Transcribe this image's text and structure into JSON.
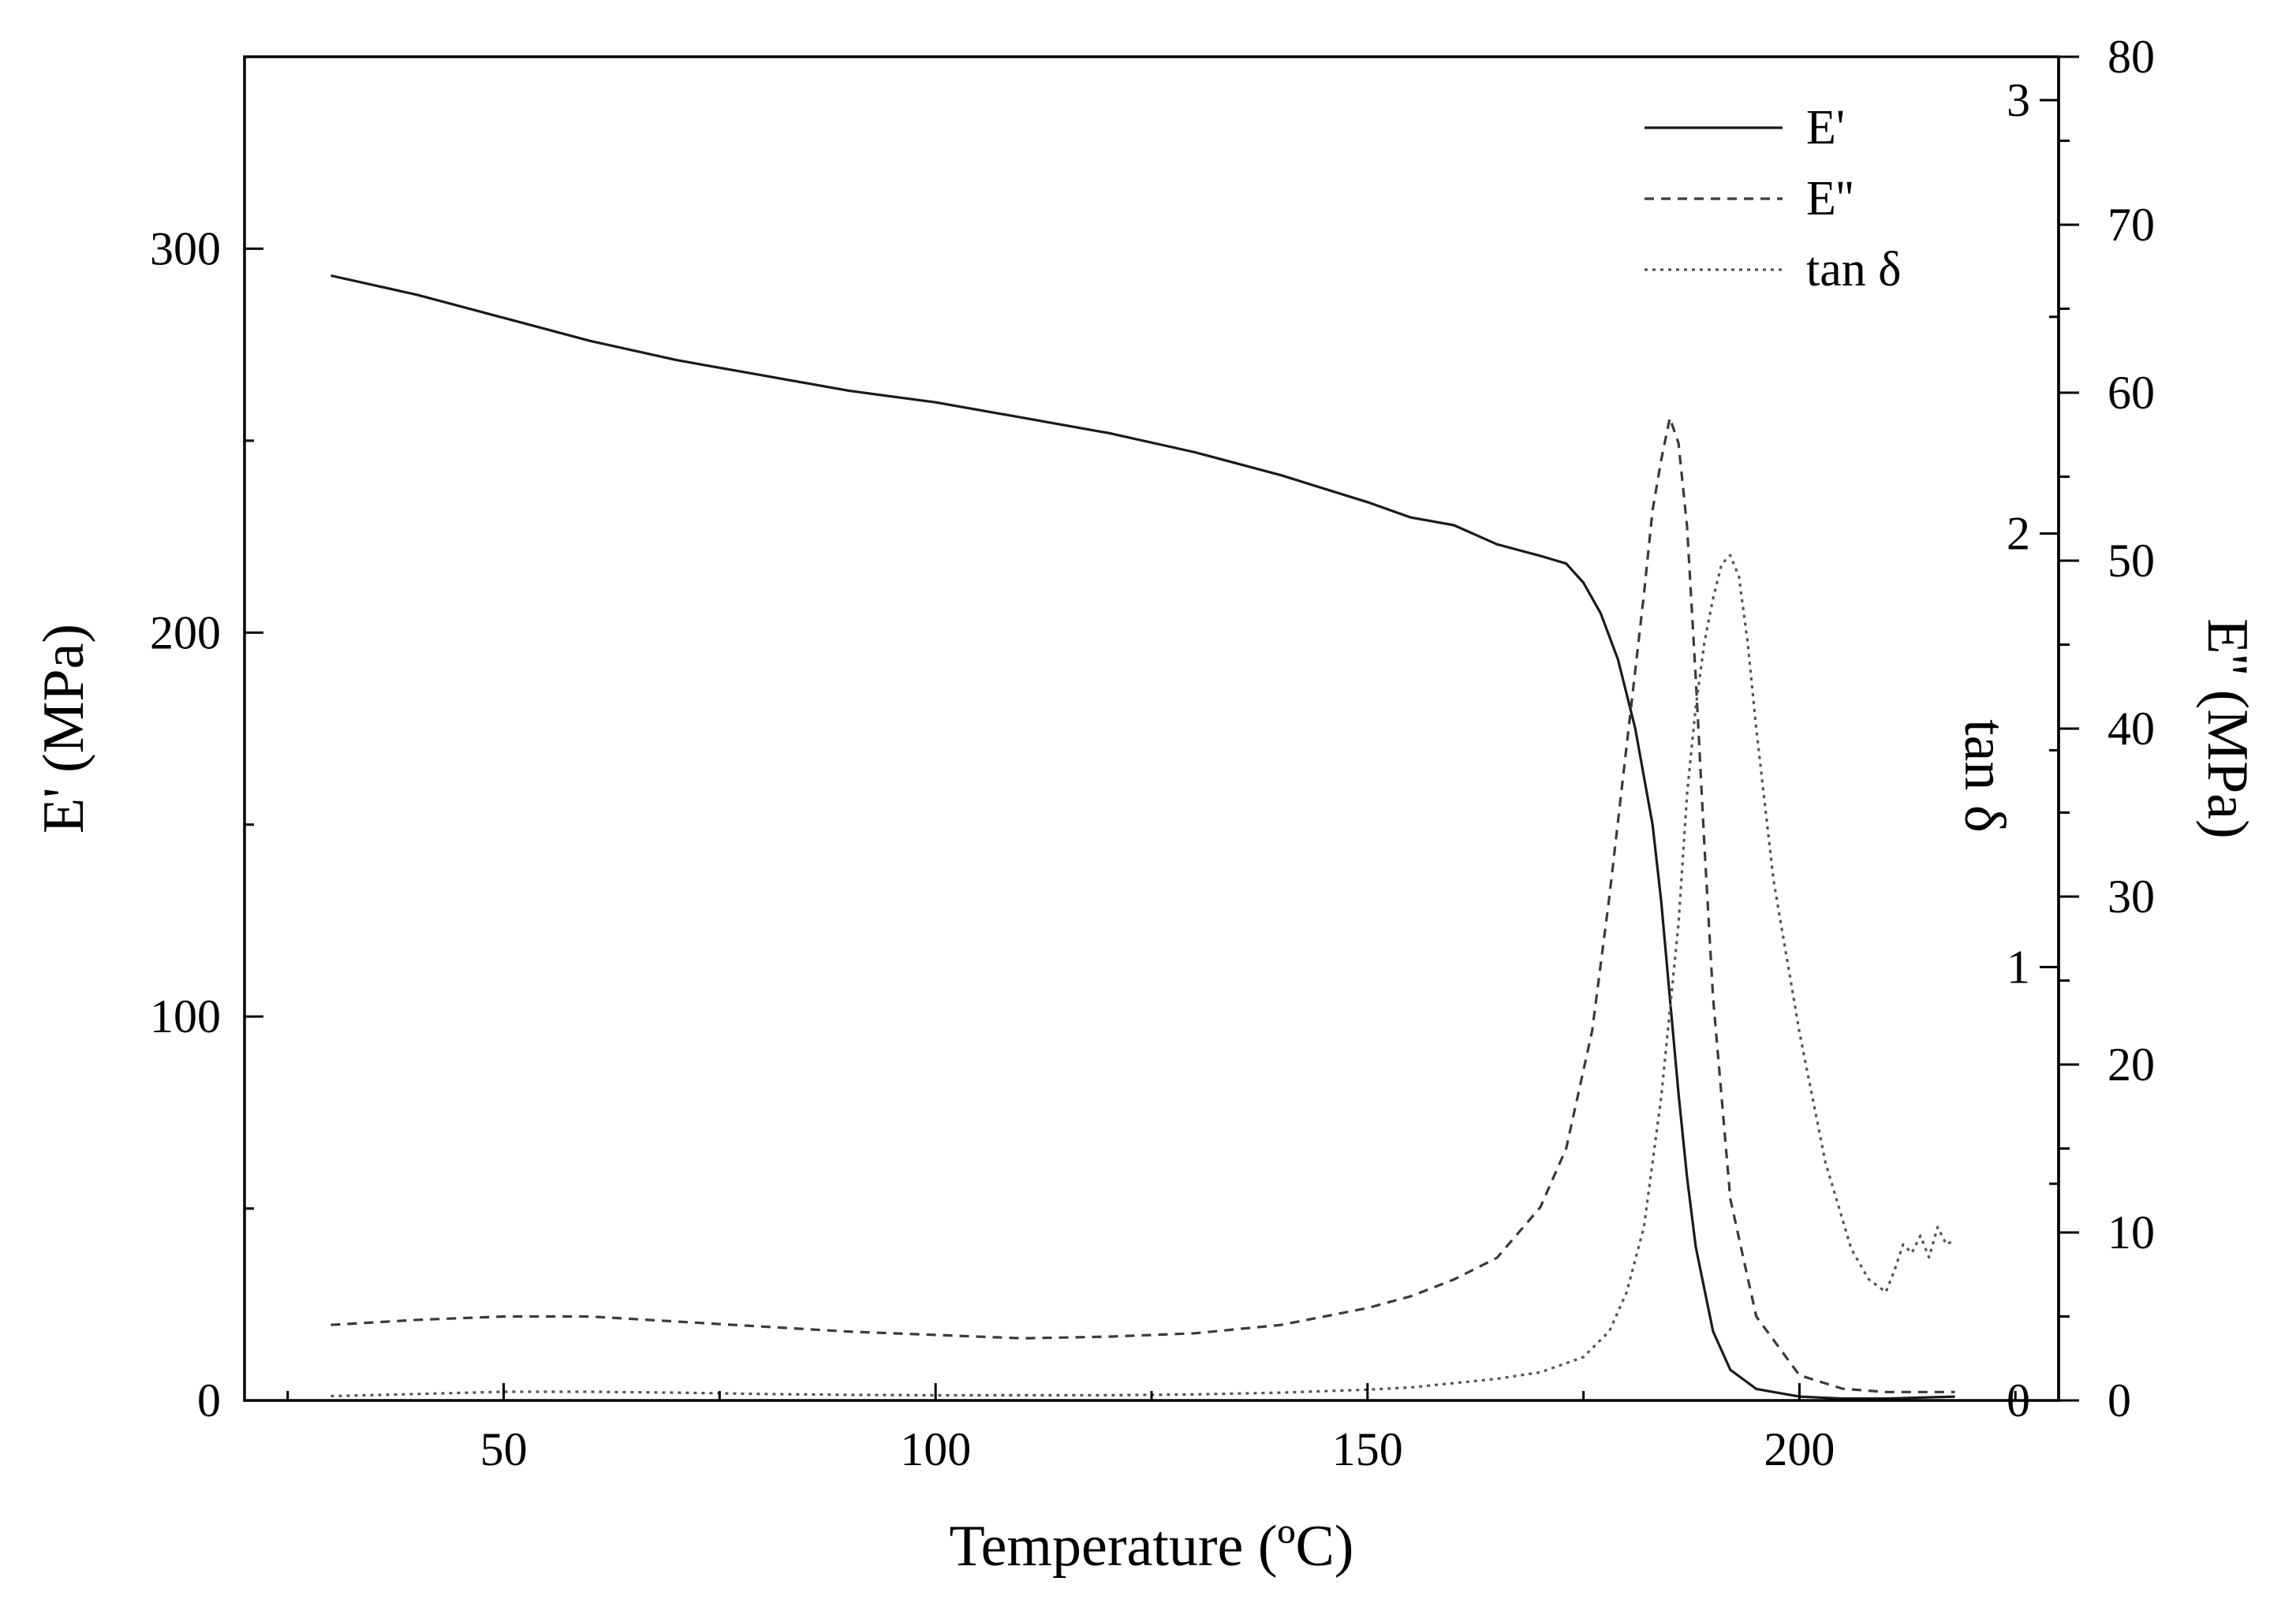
{
  "chart_data": {
    "type": "line",
    "title": "",
    "xlabel": "Temperature (ºC)",
    "ylabel_left": "E' (MPa)",
    "ylabel_tan": "tan δ",
    "ylabel_right": "E'' (MPa)",
    "xlim": [
      20,
      230
    ],
    "ylim_left": [
      0,
      350
    ],
    "ylim_tan": [
      0,
      3.1
    ],
    "ylim_right": [
      0,
      80
    ],
    "xticks": [
      50,
      100,
      150,
      200
    ],
    "xtick_labels": [
      "50",
      "100",
      "150",
      "200"
    ],
    "yticks_left": [
      0,
      100,
      200,
      300
    ],
    "ytick_labels_left": [
      "0",
      "100",
      "200",
      "300"
    ],
    "yticks_tan": [
      0,
      1,
      2,
      3
    ],
    "ytick_labels_tan": [
      "0",
      "1",
      "2",
      "3"
    ],
    "yticks_right": [
      0,
      10,
      20,
      30,
      40,
      50,
      60,
      70,
      80
    ],
    "ytick_labels_right": [
      "0",
      "10",
      "20",
      "30",
      "40",
      "50",
      "60",
      "70",
      "80"
    ],
    "legend_position": "top-right",
    "series": [
      {
        "name": "E'",
        "axis": "left",
        "style": "solid",
        "x": [
          30,
          40,
          50,
          60,
          70,
          80,
          90,
          100,
          110,
          120,
          130,
          140,
          150,
          155,
          160,
          165,
          170,
          173,
          175,
          177,
          179,
          181,
          183,
          184,
          185,
          186,
          187,
          188,
          190,
          192,
          195,
          200,
          205,
          210,
          218
        ],
        "values": [
          293,
          288,
          282,
          276,
          271,
          267,
          263,
          260,
          256,
          252,
          247,
          241,
          234,
          230,
          228,
          223,
          220,
          218,
          213,
          205,
          193,
          175,
          150,
          130,
          105,
          80,
          58,
          40,
          18,
          8,
          3,
          1,
          0.5,
          0.5,
          1
        ]
      },
      {
        "name": "E''",
        "axis": "right",
        "style": "dashed",
        "x": [
          30,
          40,
          50,
          60,
          70,
          80,
          90,
          100,
          110,
          120,
          130,
          140,
          150,
          155,
          160,
          165,
          170,
          173,
          176,
          178,
          180,
          182,
          183,
          184,
          185,
          186,
          187,
          188,
          189,
          190,
          192,
          195,
          200,
          205,
          210,
          218
        ],
        "values": [
          4.5,
          4.8,
          5.0,
          5.0,
          4.7,
          4.4,
          4.1,
          3.9,
          3.7,
          3.8,
          4.0,
          4.5,
          5.5,
          6.2,
          7.2,
          8.5,
          11.5,
          15,
          22,
          30,
          39,
          48,
          53,
          56,
          58.5,
          57,
          52,
          43,
          33,
          24,
          12,
          5,
          1.5,
          0.7,
          0.5,
          0.5
        ]
      },
      {
        "name": "tan δ",
        "axis": "tan",
        "style": "dotted",
        "x": [
          30,
          40,
          50,
          60,
          70,
          80,
          90,
          100,
          110,
          120,
          130,
          140,
          150,
          155,
          160,
          165,
          170,
          175,
          178,
          180,
          182,
          184,
          186,
          187,
          188,
          189,
          190,
          191,
          192,
          193,
          194,
          195,
          197,
          200,
          203,
          206,
          208,
          210,
          211,
          212,
          213,
          214,
          215,
          216,
          217,
          218
        ],
        "values": [
          0.01,
          0.015,
          0.02,
          0.02,
          0.018,
          0.015,
          0.013,
          0.012,
          0.012,
          0.012,
          0.014,
          0.018,
          0.025,
          0.03,
          0.04,
          0.05,
          0.065,
          0.1,
          0.16,
          0.25,
          0.4,
          0.7,
          1.1,
          1.4,
          1.6,
          1.75,
          1.85,
          1.93,
          1.95,
          1.9,
          1.75,
          1.55,
          1.2,
          0.85,
          0.55,
          0.35,
          0.28,
          0.25,
          0.3,
          0.36,
          0.34,
          0.38,
          0.33,
          0.4,
          0.36,
          0.37
        ]
      }
    ]
  }
}
